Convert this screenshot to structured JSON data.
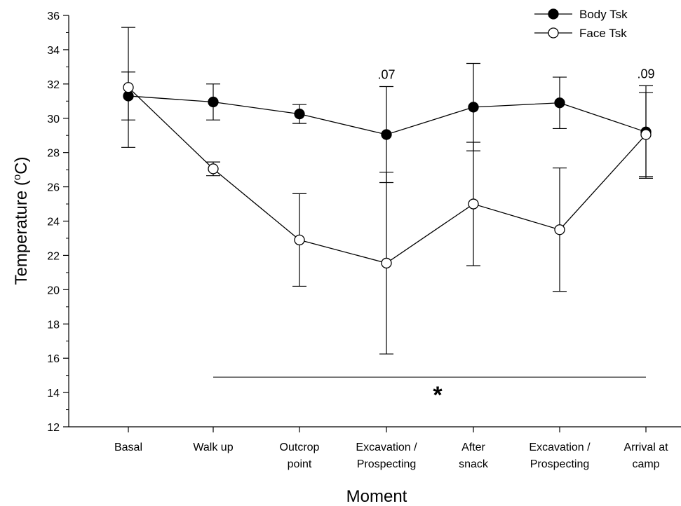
{
  "chart_data": {
    "type": "line",
    "title": "",
    "xlabel": "Moment",
    "ylabel": "Temperature (°C)",
    "ylabel_parts": {
      "pre": "Temperature (",
      "sup": "o",
      "post": "C)"
    },
    "ylim": [
      12,
      36
    ],
    "y_ticks": [
      12,
      14,
      16,
      18,
      20,
      22,
      24,
      26,
      28,
      30,
      32,
      34,
      36
    ],
    "grid": false,
    "legend_position": "top-right",
    "categories": [
      [
        "Basal"
      ],
      [
        "Walk up"
      ],
      [
        "Outcrop",
        "point"
      ],
      [
        "Excavation /",
        "Prospecting"
      ],
      [
        "After",
        "snack"
      ],
      [
        "Excavation /",
        "Prospecting"
      ],
      [
        "Arrival at",
        "camp"
      ]
    ],
    "series": [
      {
        "name": "Body Tsk",
        "marker": "filled",
        "values": [
          31.3,
          30.95,
          30.25,
          29.05,
          30.65,
          30.9,
          29.2
        ],
        "error": [
          1.4,
          1.05,
          0.55,
          2.8,
          2.55,
          1.5,
          2.7
        ]
      },
      {
        "name": "Face Tsk",
        "marker": "open",
        "values": [
          31.8,
          27.05,
          22.9,
          21.55,
          25.0,
          23.5,
          29.05
        ],
        "error": [
          3.5,
          0.4,
          2.7,
          5.3,
          3.6,
          3.6,
          2.45
        ]
      }
    ],
    "annotations": [
      {
        "text": ".07",
        "category_index": 3
      },
      {
        "text": ".09",
        "category_index": 6
      }
    ],
    "significance": {
      "symbol": "*",
      "from_index": 1,
      "to_index": 6,
      "y": 14.9
    }
  }
}
